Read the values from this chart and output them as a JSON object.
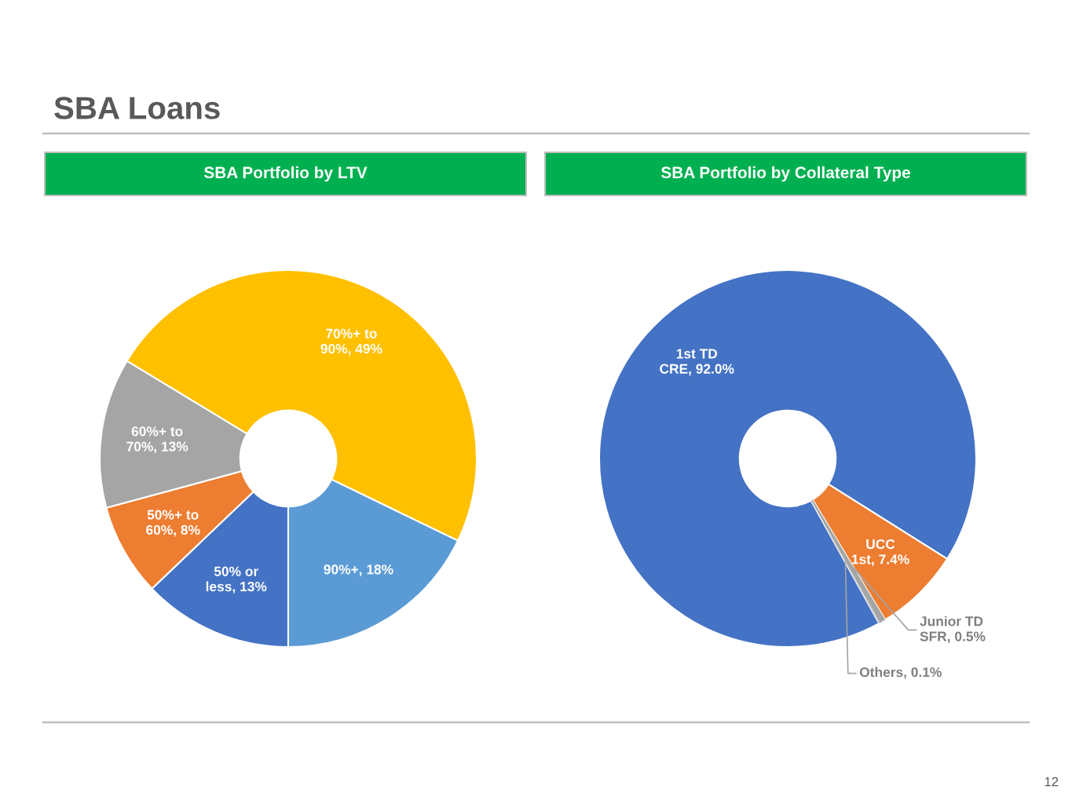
{
  "chart_data": [
    {
      "type": "other",
      "title": "SBA Loans",
      "annotations": [
        "12"
      ]
    },
    {
      "type": "donut",
      "title": "SBA Portfolio by LTV",
      "categories": [
        "50% or less",
        "50%+ to 60%",
        "60%+ to 70%",
        "70%+ to 90%",
        "90%+"
      ],
      "values": [
        13,
        8,
        13,
        49,
        18
      ],
      "value_labels": [
        "13%",
        "8%",
        "13%",
        "49%",
        "18%"
      ],
      "colors": [
        "#4472c4",
        "#ed7d31",
        "#a5a5a5",
        "#ffc000",
        "#5b9bd5"
      ]
    },
    {
      "type": "donut",
      "title": "SBA Portfolio by Collateral Type",
      "categories": [
        "1st TD CRE",
        "UCC 1st",
        "Junior TD SFR",
        "Others"
      ],
      "values": [
        92.0,
        7.4,
        0.5,
        0.1
      ],
      "value_labels": [
        "92.0%",
        "7.4%",
        "0.5%",
        "0.1%"
      ],
      "colors": [
        "#4472c4",
        "#ed7d31",
        "#a5a5a5",
        "#bfbfbf"
      ]
    }
  ]
}
